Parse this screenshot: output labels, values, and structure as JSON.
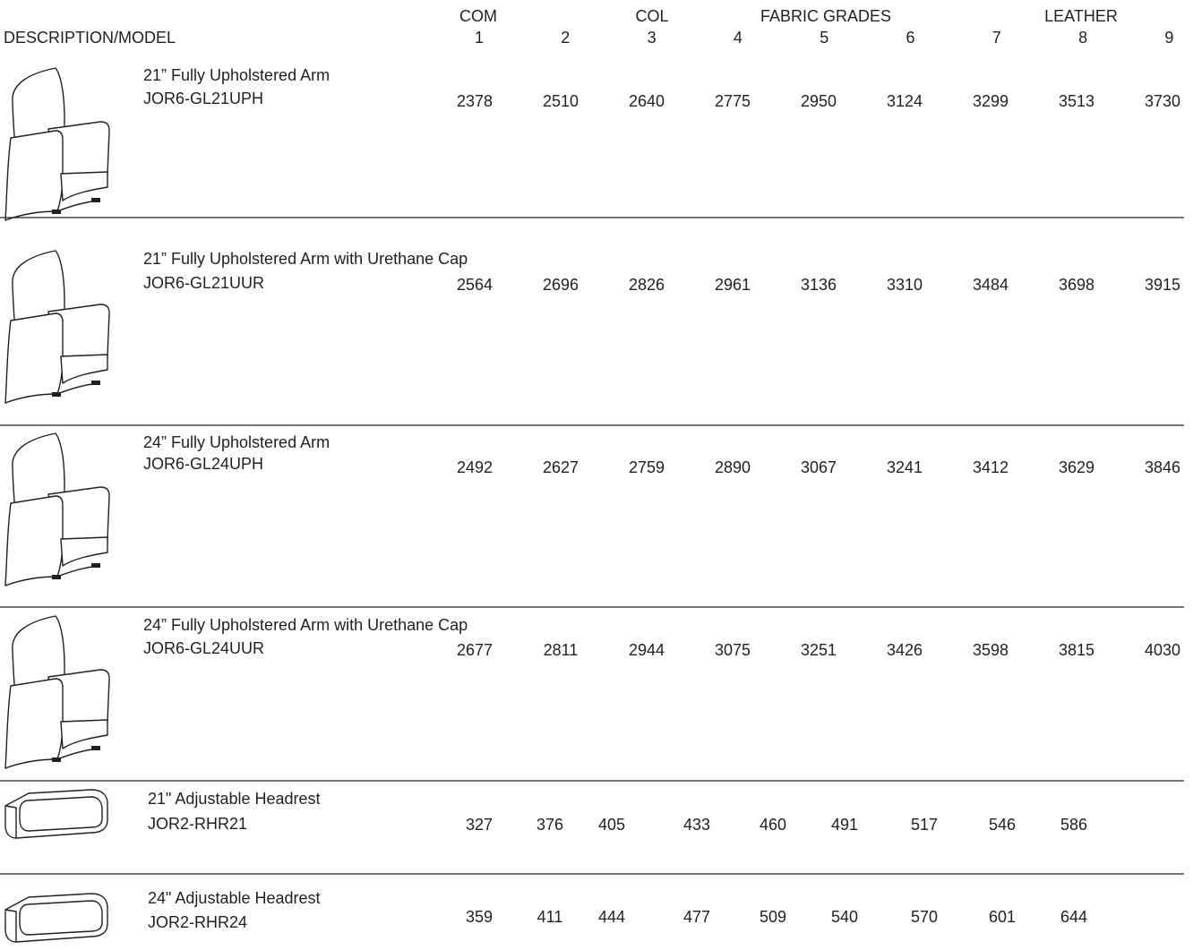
{
  "header": {
    "groups": [
      "COM",
      "COL",
      "FABRIC GRADES",
      "LEATHER"
    ],
    "description": "DESCRIPTION/MODEL",
    "grades": [
      "1",
      "2",
      "3",
      "4",
      "5",
      "6",
      "7",
      "8",
      "9"
    ]
  },
  "table": {
    "rows": [
      {
        "description": "21” Fully Upholstered Arm",
        "model": "JOR6-GL21UPH",
        "prices": [
          2378,
          2510,
          2640,
          2775,
          2950,
          3124,
          3299,
          3513,
          3730
        ]
      },
      {
        "description": "21” Fully Upholstered Arm with Urethane Cap",
        "model": "JOR6-GL21UUR",
        "prices": [
          2564,
          2696,
          2826,
          2961,
          3136,
          3310,
          3484,
          3698,
          3915
        ]
      },
      {
        "description": "24” Fully Upholstered Arm",
        "model": "JOR6-GL24UPH",
        "prices": [
          2492,
          2627,
          2759,
          2890,
          3067,
          3241,
          3412,
          3629,
          3846
        ]
      },
      {
        "description": "24” Fully Upholstered Arm with Urethane Cap",
        "model": "JOR6-GL24UUR",
        "prices": [
          2677,
          2811,
          2944,
          3075,
          3251,
          3426,
          3598,
          3815,
          4030
        ]
      },
      {
        "description": "21\" Adjustable Headrest",
        "model": "JOR2-RHR21",
        "prices": [
          327,
          376,
          405,
          433,
          460,
          491,
          517,
          546,
          586
        ]
      },
      {
        "description": "24\" Adjustable Headrest",
        "model": "JOR2-RHR24",
        "prices": [
          359,
          411,
          444,
          477,
          509,
          540,
          570,
          601,
          644
        ]
      }
    ]
  }
}
